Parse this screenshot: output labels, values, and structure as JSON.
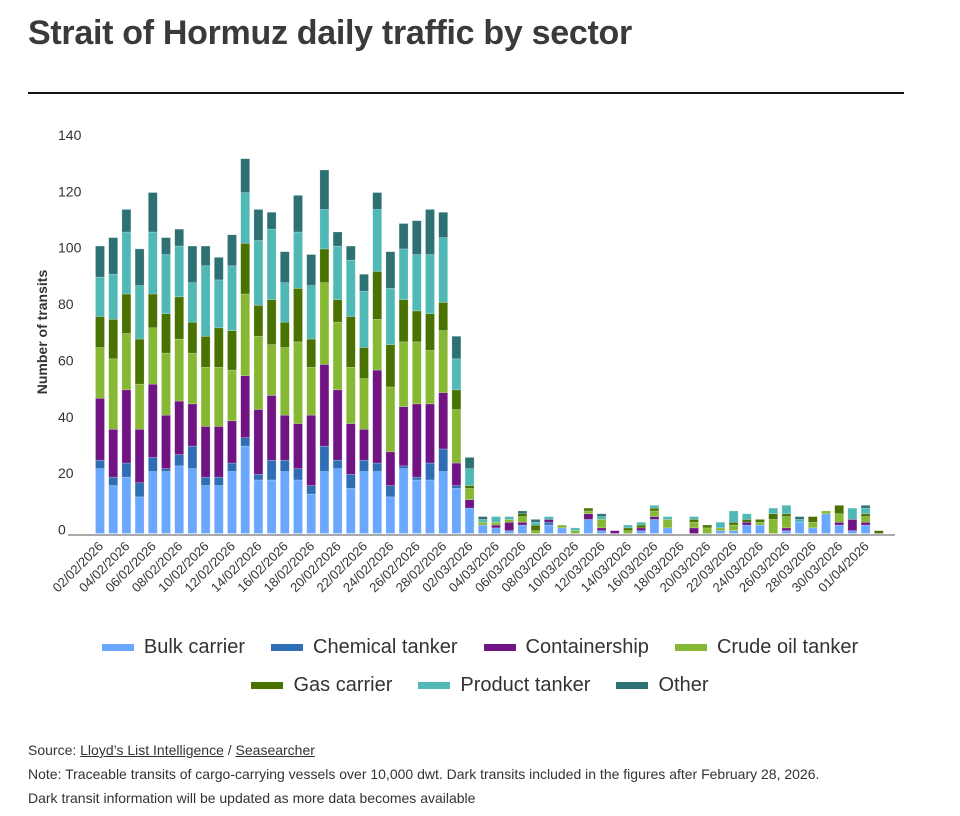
{
  "title": "Strait of Hormuz daily traffic by sector",
  "footer": {
    "source_label": "Source: ",
    "source_link1": "Lloyd’s List Intelligence",
    "source_sep": " / ",
    "source_link2": "Seasearcher",
    "note1": "Note: Traceable transits of cargo-carrying vessels over 10,000 dwt. Dark transits included in the figures after February 28, 2026.",
    "note2": "Dark transit information will be updated as more data becomes available"
  },
  "chart_data": {
    "type": "bar",
    "stacked": true,
    "title": "Strait of Hormuz daily traffic by sector",
    "xlabel": "",
    "ylabel": "Number of transits",
    "ylim": [
      0,
      140
    ],
    "yticks": [
      0,
      20,
      40,
      60,
      80,
      100,
      120,
      140
    ],
    "grid": false,
    "legend_position": "bottom",
    "categories": [
      "02/02/2026",
      "03/02/2026",
      "04/02/2026",
      "05/02/2026",
      "06/02/2026",
      "07/02/2026",
      "08/02/2026",
      "09/02/2026",
      "10/02/2026",
      "11/02/2026",
      "12/02/2026",
      "13/02/2026",
      "14/02/2026",
      "15/02/2026",
      "16/02/2026",
      "17/02/2026",
      "18/02/2026",
      "19/02/2026",
      "20/02/2026",
      "21/02/2026",
      "22/02/2026",
      "23/02/2026",
      "24/02/2026",
      "25/02/2026",
      "26/02/2026",
      "27/02/2026",
      "28/02/2026",
      "01/03/2026",
      "02/03/2026",
      "03/03/2026",
      "04/03/2026",
      "05/03/2026",
      "06/03/2026",
      "07/03/2026",
      "08/03/2026",
      "09/03/2026",
      "10/03/2026",
      "11/03/2026",
      "12/03/2026",
      "13/03/2026",
      "14/03/2026",
      "15/03/2026",
      "16/03/2026",
      "17/03/2026",
      "18/03/2026",
      "19/03/2026",
      "20/03/2026",
      "21/03/2026",
      "22/03/2026",
      "23/03/2026",
      "24/03/2026",
      "25/03/2026",
      "26/03/2026",
      "27/03/2026",
      "28/03/2026",
      "29/03/2026",
      "30/03/2026",
      "31/03/2026",
      "01/04/2026",
      "02/04/2026"
    ],
    "series": [
      {
        "name": "Bulk carrier",
        "color": "#6aa7ff",
        "values": [
          23,
          17,
          20,
          13,
          22,
          22,
          24,
          23,
          17,
          17,
          22,
          31,
          19,
          19,
          22,
          19,
          14,
          22,
          23,
          16,
          22,
          22,
          13,
          23,
          19,
          19,
          22,
          16,
          9,
          3,
          2,
          1,
          3,
          0,
          3,
          2,
          0,
          5,
          1,
          0,
          0,
          1,
          5,
          2,
          0,
          0,
          0,
          1,
          1,
          3,
          3,
          0,
          1,
          4,
          2,
          7,
          3,
          1,
          3,
          0
        ]
      },
      {
        "name": "Chemical tanker",
        "color": "#2f6db5",
        "values": [
          3,
          3,
          5,
          5,
          5,
          1,
          4,
          8,
          3,
          3,
          3,
          3,
          2,
          7,
          4,
          4,
          3,
          9,
          3,
          5,
          4,
          3,
          4,
          1,
          1,
          6,
          8,
          1,
          0,
          0,
          0,
          0,
          0,
          0,
          1,
          0,
          0,
          0,
          0,
          0,
          0,
          0,
          0,
          0,
          0,
          0,
          0,
          0,
          0,
          0,
          0,
          0,
          0,
          0,
          0,
          0,
          0,
          0,
          0,
          0
        ]
      },
      {
        "name": "Containership",
        "color": "#6f1482",
        "values": [
          22,
          17,
          26,
          19,
          26,
          19,
          19,
          15,
          18,
          18,
          15,
          22,
          23,
          23,
          16,
          16,
          25,
          29,
          25,
          18,
          11,
          33,
          12,
          21,
          26,
          21,
          20,
          8,
          3,
          0,
          1,
          3,
          1,
          0,
          1,
          0,
          0,
          2,
          1,
          1,
          0,
          1,
          1,
          0,
          0,
          2,
          0,
          0,
          0,
          1,
          0,
          0,
          1,
          0,
          0,
          0,
          1,
          4,
          1,
          0
        ]
      },
      {
        "name": "Crude oil tanker",
        "color": "#86b834",
        "values": [
          18,
          25,
          20,
          16,
          20,
          22,
          22,
          18,
          21,
          21,
          18,
          29,
          26,
          18,
          24,
          29,
          17,
          29,
          24,
          20,
          18,
          18,
          23,
          23,
          22,
          19,
          22,
          19,
          4,
          1,
          1,
          1,
          2,
          1,
          0,
          1,
          1,
          1,
          3,
          0,
          1,
          0,
          2,
          3,
          0,
          2,
          2,
          1,
          2,
          0,
          1,
          5,
          4,
          0,
          2,
          1,
          3,
          0,
          2,
          0
        ]
      },
      {
        "name": "Gas carrier",
        "color": "#4a7200",
        "values": [
          11,
          14,
          14,
          16,
          12,
          14,
          15,
          11,
          11,
          14,
          14,
          18,
          11,
          16,
          9,
          19,
          10,
          12,
          8,
          18,
          11,
          17,
          15,
          15,
          11,
          13,
          10,
          7,
          1,
          0,
          0,
          0,
          1,
          2,
          0,
          0,
          0,
          1,
          0,
          0,
          1,
          1,
          1,
          0,
          0,
          1,
          1,
          0,
          1,
          1,
          1,
          2,
          1,
          0,
          2,
          0,
          3,
          0,
          1,
          1
        ]
      },
      {
        "name": "Product tanker",
        "color": "#50b9b6",
        "values": [
          14,
          16,
          22,
          19,
          22,
          21,
          18,
          14,
          25,
          17,
          23,
          18,
          23,
          25,
          14,
          20,
          19,
          14,
          19,
          20,
          20,
          22,
          20,
          18,
          20,
          21,
          23,
          11,
          6,
          1,
          2,
          1,
          0,
          1,
          1,
          0,
          1,
          0,
          1,
          0,
          1,
          1,
          1,
          1,
          0,
          1,
          0,
          2,
          4,
          2,
          0,
          2,
          3,
          1,
          0,
          0,
          0,
          4,
          2,
          0
        ]
      },
      {
        "name": "Other",
        "color": "#2e7172",
        "values": [
          11,
          13,
          8,
          13,
          14,
          6,
          6,
          13,
          7,
          8,
          11,
          12,
          11,
          6,
          11,
          13,
          11,
          14,
          5,
          5,
          6,
          6,
          13,
          9,
          12,
          16,
          9,
          8,
          4,
          1,
          0,
          0,
          1,
          1,
          0,
          0,
          0,
          0,
          1,
          0,
          0,
          0,
          0,
          0,
          0,
          0,
          0,
          0,
          0,
          0,
          0,
          0,
          0,
          1,
          0,
          0,
          0,
          0,
          1,
          0
        ]
      }
    ]
  }
}
